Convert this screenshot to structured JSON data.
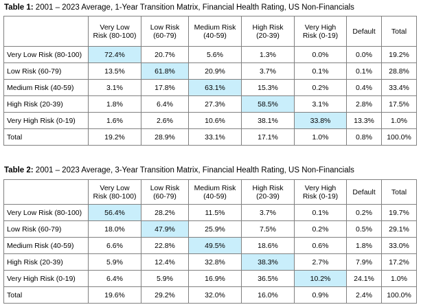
{
  "table1": {
    "caption_label": "Table 1:",
    "caption_text": " 2001 – 2023 Average, 1-Year Transition Matrix, Financial Health Rating, US Non-Financials",
    "columns": [
      {
        "line1": "Very Low",
        "line2": "Risk (80-100)"
      },
      {
        "line1": "Low Risk",
        "line2": "(60-79)"
      },
      {
        "line1": "Medium Risk",
        "line2": "(40-59)"
      },
      {
        "line1": "High Risk",
        "line2": "(20-39)"
      },
      {
        "line1": "Very High",
        "line2": "Risk (0-19)"
      },
      {
        "line1": "Default",
        "line2": ""
      },
      {
        "line1": "Total",
        "line2": ""
      }
    ],
    "rows": [
      {
        "label": "Very Low Risk (80-100)",
        "values": [
          "72.4%",
          "20.7%",
          "5.6%",
          "1.3%",
          "0.0%",
          "0.0%",
          "19.2%"
        ]
      },
      {
        "label": "Low Risk (60-79)",
        "values": [
          "13.5%",
          "61.8%",
          "20.9%",
          "3.7%",
          "0.1%",
          "0.1%",
          "28.8%"
        ]
      },
      {
        "label": "Medium Risk (40-59)",
        "values": [
          "3.1%",
          "17.8%",
          "63.1%",
          "15.3%",
          "0.2%",
          "0.4%",
          "33.4%"
        ]
      },
      {
        "label": "High Risk (20-39)",
        "values": [
          "1.8%",
          "6.4%",
          "27.3%",
          "58.5%",
          "3.1%",
          "2.8%",
          "17.5%"
        ]
      },
      {
        "label": "Very High Risk (0-19)",
        "values": [
          "1.6%",
          "2.6%",
          "10.6%",
          "38.1%",
          "33.8%",
          "13.3%",
          "1.0%"
        ]
      },
      {
        "label": "Total",
        "values": [
          "19.2%",
          "28.9%",
          "33.1%",
          "17.1%",
          "1.0%",
          "0.8%",
          "100.0%"
        ]
      }
    ]
  },
  "table2": {
    "caption_label": "Table 2:",
    "caption_text": " 2001 – 2023 Average, 3-Year Transition Matrix, Financial Health Rating, US Non-Financials",
    "columns": [
      {
        "line1": "Very Low",
        "line2": "Risk (80-100)"
      },
      {
        "line1": "Low Risk",
        "line2": "(60-79)"
      },
      {
        "line1": "Medium Risk",
        "line2": "(40-59)"
      },
      {
        "line1": "High Risk",
        "line2": "(20-39)"
      },
      {
        "line1": "Very High",
        "line2": "Risk (0-19)"
      },
      {
        "line1": "Default",
        "line2": ""
      },
      {
        "line1": "Total",
        "line2": ""
      }
    ],
    "rows": [
      {
        "label": "Very Low Risk (80-100)",
        "values": [
          "56.4%",
          "28.2%",
          "11.5%",
          "3.7%",
          "0.1%",
          "0.2%",
          "19.7%"
        ]
      },
      {
        "label": "Low Risk (60-79)",
        "values": [
          "18.0%",
          "47.9%",
          "25.9%",
          "7.5%",
          "0.2%",
          "0.5%",
          "29.1%"
        ]
      },
      {
        "label": "Medium Risk (40-59)",
        "values": [
          "6.6%",
          "22.8%",
          "49.5%",
          "18.6%",
          "0.6%",
          "1.8%",
          "33.0%"
        ]
      },
      {
        "label": "High Risk (20-39)",
        "values": [
          "5.9%",
          "12.4%",
          "32.8%",
          "38.3%",
          "2.7%",
          "7.9%",
          "17.2%"
        ]
      },
      {
        "label": "Very High Risk (0-19)",
        "values": [
          "6.4%",
          "5.9%",
          "16.9%",
          "36.5%",
          "10.2%",
          "24.1%",
          "1.0%"
        ]
      },
      {
        "label": "Total",
        "values": [
          "19.6%",
          "29.2%",
          "32.0%",
          "16.0%",
          "0.9%",
          "2.4%",
          "100.0%"
        ]
      }
    ]
  },
  "highlight_color": "#c9eefb",
  "border_color": "#7f7f7f"
}
